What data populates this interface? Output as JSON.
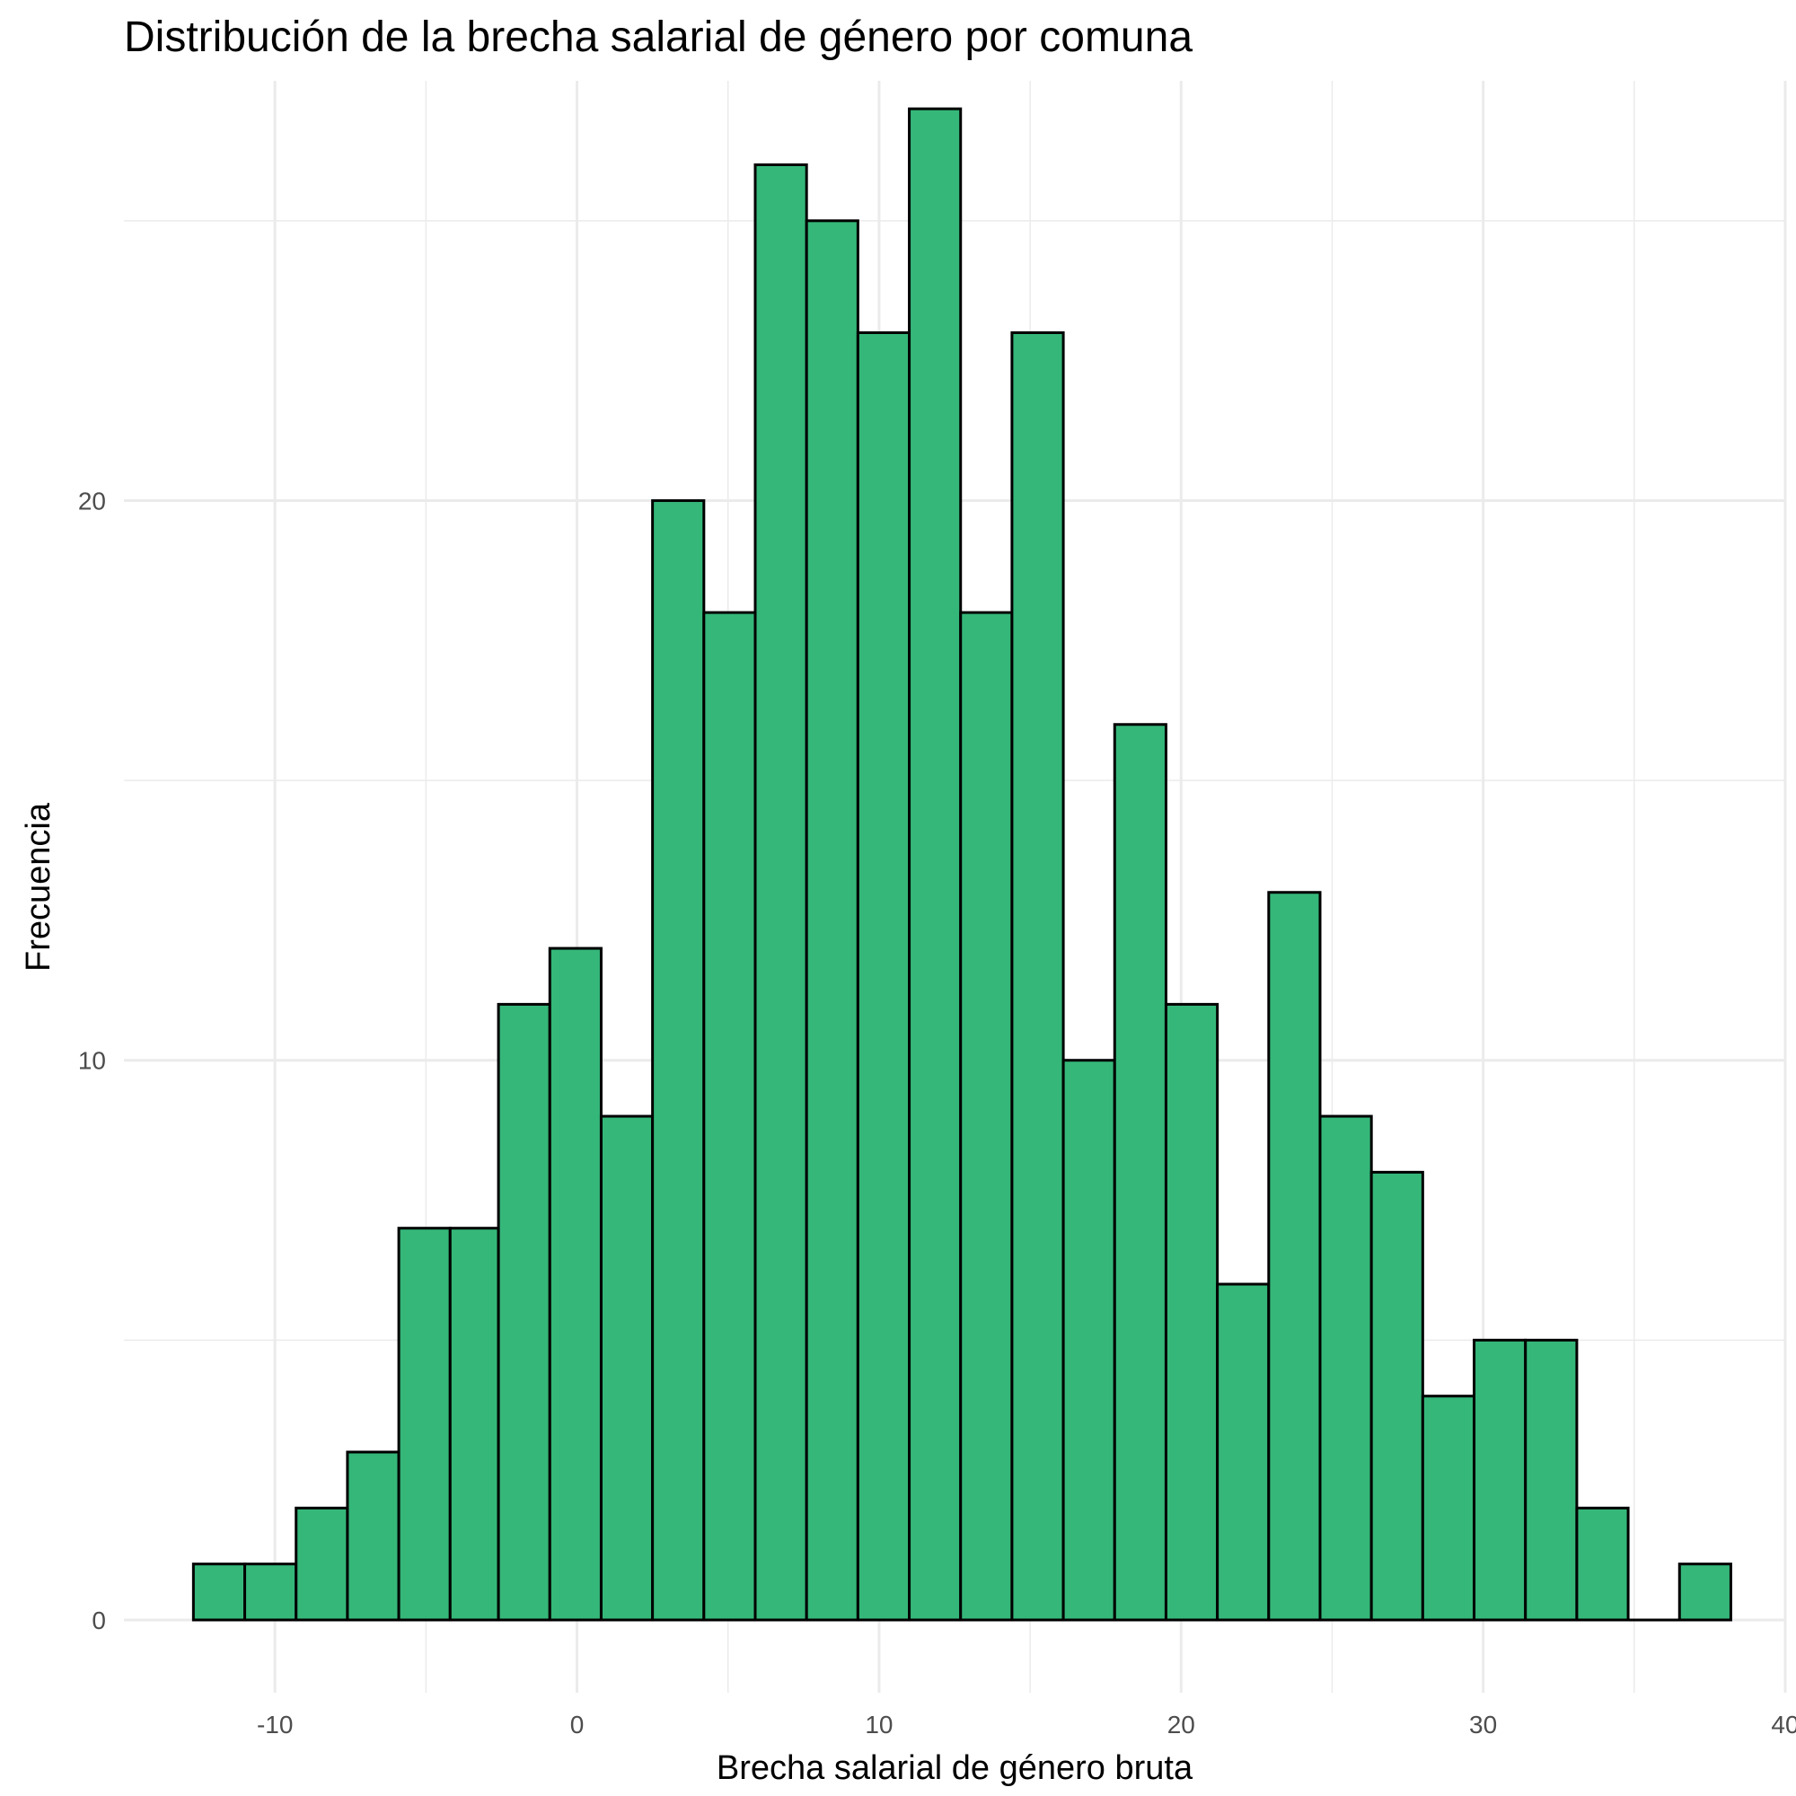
{
  "chart_data": {
    "type": "bar",
    "title": "Distribución de la brecha salarial de género por comuna",
    "xlabel": "Brecha salarial de género bruta",
    "ylabel": "Frecuencia",
    "xlim": [
      -15,
      40
    ],
    "ylim": [
      -1.3,
      27.5
    ],
    "x_ticks": [
      -10,
      0,
      10,
      20,
      30,
      40
    ],
    "y_ticks": [
      0,
      10,
      20
    ],
    "grid": true,
    "bar_color": "#35b779",
    "bar_outline": "#000000",
    "bins": [
      {
        "x0": -12.7,
        "x1": -11.0,
        "count": 1
      },
      {
        "x0": -11.0,
        "x1": -9.3,
        "count": 1
      },
      {
        "x0": -9.3,
        "x1": -7.6,
        "count": 2
      },
      {
        "x0": -7.6,
        "x1": -5.9,
        "count": 3
      },
      {
        "x0": -5.9,
        "x1": -4.2,
        "count": 7
      },
      {
        "x0": -4.2,
        "x1": -2.6,
        "count": 7
      },
      {
        "x0": -2.6,
        "x1": -0.9,
        "count": 11
      },
      {
        "x0": -0.9,
        "x1": 0.8,
        "count": 12
      },
      {
        "x0": 0.8,
        "x1": 2.5,
        "count": 9
      },
      {
        "x0": 2.5,
        "x1": 4.2,
        "count": 20
      },
      {
        "x0": 4.2,
        "x1": 5.9,
        "count": 18
      },
      {
        "x0": 5.9,
        "x1": 7.6,
        "count": 26
      },
      {
        "x0": 7.6,
        "x1": 9.3,
        "count": 25
      },
      {
        "x0": 9.3,
        "x1": 11.0,
        "count": 23
      },
      {
        "x0": 11.0,
        "x1": 12.7,
        "count": 27
      },
      {
        "x0": 12.7,
        "x1": 14.4,
        "count": 18
      },
      {
        "x0": 14.4,
        "x1": 16.1,
        "count": 23
      },
      {
        "x0": 16.1,
        "x1": 17.8,
        "count": 10
      },
      {
        "x0": 17.8,
        "x1": 19.5,
        "count": 16
      },
      {
        "x0": 19.5,
        "x1": 21.2,
        "count": 11
      },
      {
        "x0": 21.2,
        "x1": 22.9,
        "count": 6
      },
      {
        "x0": 22.9,
        "x1": 24.6,
        "count": 13
      },
      {
        "x0": 24.6,
        "x1": 26.3,
        "count": 9
      },
      {
        "x0": 26.3,
        "x1": 28.0,
        "count": 8
      },
      {
        "x0": 28.0,
        "x1": 29.7,
        "count": 4
      },
      {
        "x0": 29.7,
        "x1": 31.4,
        "count": 5
      },
      {
        "x0": 31.4,
        "x1": 33.1,
        "count": 5
      },
      {
        "x0": 33.1,
        "x1": 34.8,
        "count": 2
      },
      {
        "x0": 34.8,
        "x1": 36.5,
        "count": 0
      },
      {
        "x0": 36.5,
        "x1": 38.2,
        "count": 1
      }
    ]
  }
}
